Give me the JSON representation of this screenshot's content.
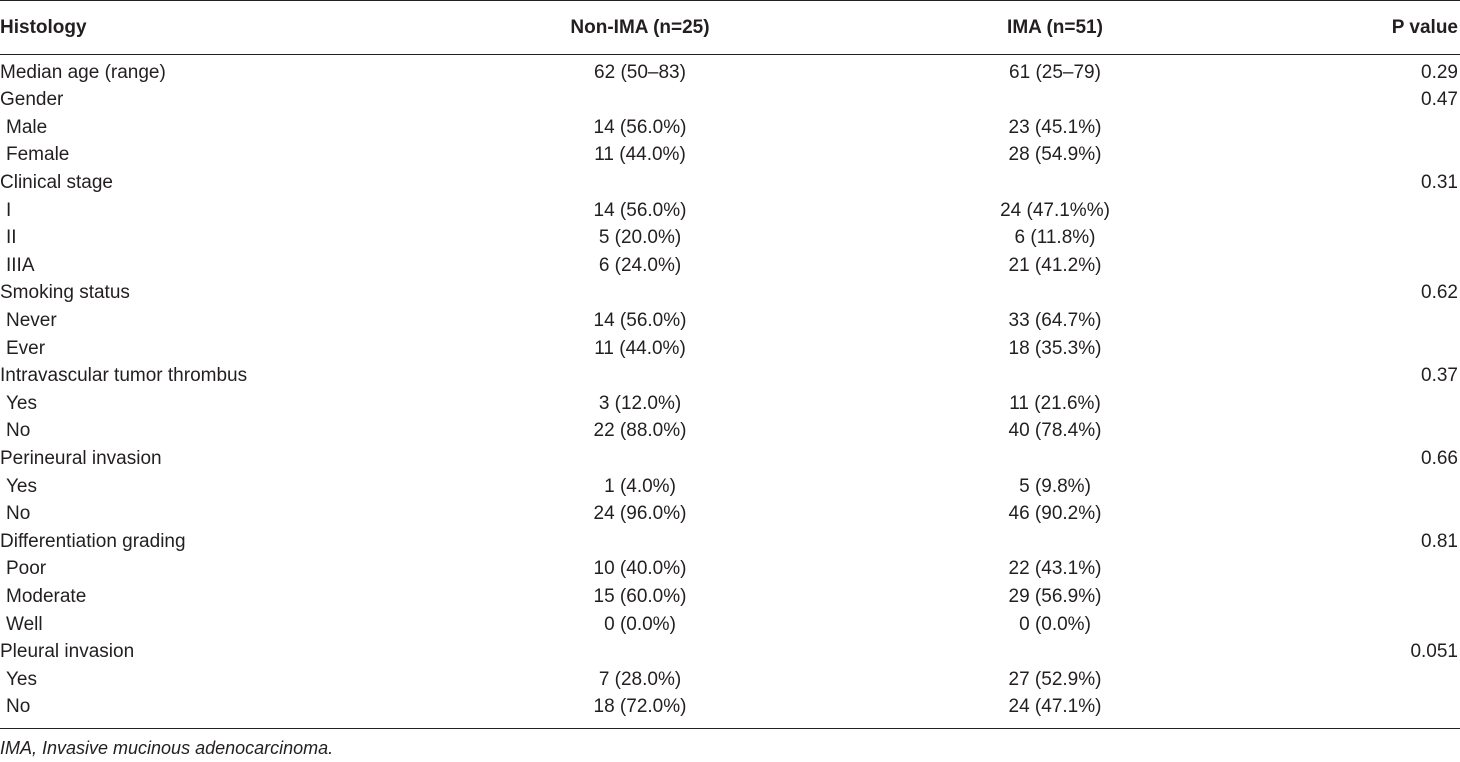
{
  "header": {
    "histology": "Histology",
    "non_ima": "Non-IMA (n=25)",
    "ima": "IMA (n=51)",
    "p_value": "P value"
  },
  "rows": [
    {
      "label": "Median age (range)",
      "non_ima": "62 (50–83)",
      "ima": "61 (25–79)",
      "p": "0.29",
      "sub": false
    },
    {
      "label": "Gender",
      "non_ima": "",
      "ima": "",
      "p": "0.47",
      "sub": false
    },
    {
      "label": "Male",
      "non_ima": "14 (56.0%)",
      "ima": "23 (45.1%)",
      "p": "",
      "sub": true
    },
    {
      "label": "Female",
      "non_ima": "11 (44.0%)",
      "ima": "28 (54.9%)",
      "p": "",
      "sub": true
    },
    {
      "label": "Clinical stage",
      "non_ima": "",
      "ima": "",
      "p": "0.31",
      "sub": false
    },
    {
      "label": "I",
      "non_ima": "14 (56.0%)",
      "ima": "24 (47.1%%)",
      "p": "",
      "sub": true
    },
    {
      "label": "II",
      "non_ima": "5 (20.0%)",
      "ima": "6 (11.8%)",
      "p": "",
      "sub": true
    },
    {
      "label": "IIIA",
      "non_ima": "6 (24.0%)",
      "ima": "21 (41.2%)",
      "p": "",
      "sub": true
    },
    {
      "label": "Smoking status",
      "non_ima": "",
      "ima": "",
      "p": "0.62",
      "sub": false
    },
    {
      "label": "Never",
      "non_ima": "14 (56.0%)",
      "ima": "33 (64.7%)",
      "p": "",
      "sub": true
    },
    {
      "label": "Ever",
      "non_ima": "11 (44.0%)",
      "ima": "18 (35.3%)",
      "p": "",
      "sub": true
    },
    {
      "label": "Intravascular tumor thrombus",
      "non_ima": "",
      "ima": "",
      "p": "0.37",
      "sub": false
    },
    {
      "label": "Yes",
      "non_ima": "3 (12.0%)",
      "ima": "11 (21.6%)",
      "p": "",
      "sub": true
    },
    {
      "label": "No",
      "non_ima": "22 (88.0%)",
      "ima": "40 (78.4%)",
      "p": "",
      "sub": true
    },
    {
      "label": "Perineural invasion",
      "non_ima": "",
      "ima": "",
      "p": "0.66",
      "sub": false
    },
    {
      "label": "Yes",
      "non_ima": "1 (4.0%)",
      "ima": "5 (9.8%)",
      "p": "",
      "sub": true
    },
    {
      "label": "No",
      "non_ima": "24 (96.0%)",
      "ima": "46 (90.2%)",
      "p": "",
      "sub": true
    },
    {
      "label": "Differentiation grading",
      "non_ima": "",
      "ima": "",
      "p": "0.81",
      "sub": false
    },
    {
      "label": "Poor",
      "non_ima": "10 (40.0%)",
      "ima": "22 (43.1%)",
      "p": "",
      "sub": true
    },
    {
      "label": "Moderate",
      "non_ima": "15 (60.0%)",
      "ima": "29 (56.9%)",
      "p": "",
      "sub": true
    },
    {
      "label": "Well",
      "non_ima": "0 (0.0%)",
      "ima": "0 (0.0%)",
      "p": "",
      "sub": true
    },
    {
      "label": "Pleural invasion",
      "non_ima": "",
      "ima": "",
      "p": "0.051",
      "sub": false
    },
    {
      "label": "Yes",
      "non_ima": "7 (28.0%)",
      "ima": "27 (52.9%)",
      "p": "",
      "sub": true
    },
    {
      "label": "No",
      "non_ima": "18 (72.0%)",
      "ima": "24 (47.1%)",
      "p": "",
      "sub": true
    }
  ],
  "footnote": "IMA, Invasive mucinous adenocarcinoma."
}
